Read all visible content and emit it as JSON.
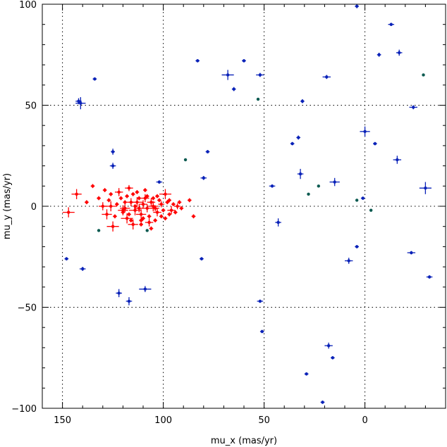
{
  "chart_data": {
    "type": "scatter",
    "title": "",
    "xlabel": "mu_x (mas/yr)",
    "ylabel": "mu_y (mas/yr)",
    "xlim": [
      160,
      -40
    ],
    "ylim": [
      -100,
      100
    ],
    "x_ticks": [
      150,
      100,
      50,
      0
    ],
    "y_ticks": [
      -100,
      -50,
      0,
      50,
      100
    ],
    "x_tick_labels": [
      "150",
      "100",
      "50",
      "0"
    ],
    "y_tick_labels": [
      "−100",
      "−50",
      "0",
      "50",
      "100"
    ],
    "grid": true,
    "legend": "none",
    "series": [
      {
        "color": "#0a22b8",
        "values": [
          {
            "x": 4,
            "y": 99,
            "ex": 1,
            "ey": 1
          },
          {
            "x": -13,
            "y": 90,
            "ex": 1.5,
            "ey": 0.8
          },
          {
            "x": -7,
            "y": 75,
            "ex": 1,
            "ey": 1
          },
          {
            "x": -17,
            "y": 76,
            "ex": 1.5,
            "ey": 1.5
          },
          {
            "x": 83,
            "y": 72,
            "ex": 1,
            "ey": 0.8
          },
          {
            "x": 60,
            "y": 72,
            "ex": 1,
            "ey": 0.8
          },
          {
            "x": 68,
            "y": 65,
            "ex": 3,
            "ey": 2.5
          },
          {
            "x": 52,
            "y": 65,
            "ex": 2,
            "ey": 1
          },
          {
            "x": 19,
            "y": 64,
            "ex": 2,
            "ey": 1
          },
          {
            "x": 65,
            "y": 58,
            "ex": 1,
            "ey": 1
          },
          {
            "x": 134,
            "y": 63,
            "ex": 1,
            "ey": 0.8
          },
          {
            "x": 142,
            "y": 52,
            "ex": 1.5,
            "ey": 1.5
          },
          {
            "x": 141,
            "y": 51,
            "ex": 2.5,
            "ey": 3
          },
          {
            "x": 31,
            "y": 52,
            "ex": 1,
            "ey": 1
          },
          {
            "x": -24,
            "y": 49,
            "ex": 2,
            "ey": 1
          },
          {
            "x": 0,
            "y": 37,
            "ex": 2.5,
            "ey": 2.5
          },
          {
            "x": 33,
            "y": 34,
            "ex": 1,
            "ey": 1
          },
          {
            "x": 36,
            "y": 31,
            "ex": 1,
            "ey": 0.8
          },
          {
            "x": -5,
            "y": 31,
            "ex": 1,
            "ey": 0.8
          },
          {
            "x": 125,
            "y": 27,
            "ex": 1,
            "ey": 1.5
          },
          {
            "x": 78,
            "y": 27,
            "ex": 1,
            "ey": 0.8
          },
          {
            "x": -16,
            "y": 23,
            "ex": 2,
            "ey": 2
          },
          {
            "x": 125,
            "y": 20,
            "ex": 1.5,
            "ey": 1.5
          },
          {
            "x": 32,
            "y": 16,
            "ex": 1.5,
            "ey": 2.5
          },
          {
            "x": 80,
            "y": 14,
            "ex": 1.5,
            "ey": 1
          },
          {
            "x": 102,
            "y": 12,
            "ex": 1.5,
            "ey": 0.8
          },
          {
            "x": 15,
            "y": 12,
            "ex": 2.5,
            "ey": 2
          },
          {
            "x": 46,
            "y": 10,
            "ex": 1.5,
            "ey": 0.8
          },
          {
            "x": -30,
            "y": 9,
            "ex": 3,
            "ey": 3
          },
          {
            "x": 1,
            "y": 4,
            "ex": 1,
            "ey": 0.8
          },
          {
            "x": 43,
            "y": -8,
            "ex": 1.5,
            "ey": 2
          },
          {
            "x": 148,
            "y": -26,
            "ex": 1,
            "ey": 0.8
          },
          {
            "x": 140,
            "y": -31,
            "ex": 1.5,
            "ey": 1
          },
          {
            "x": 81,
            "y": -26,
            "ex": 1,
            "ey": 0.8
          },
          {
            "x": 4,
            "y": -20,
            "ex": 1,
            "ey": 0.8
          },
          {
            "x": 8,
            "y": -27,
            "ex": 2,
            "ey": 1.5
          },
          {
            "x": -23,
            "y": -23,
            "ex": 2,
            "ey": 0.8
          },
          {
            "x": -32,
            "y": -35,
            "ex": 1.5,
            "ey": 0.8
          },
          {
            "x": 122,
            "y": -43,
            "ex": 1.5,
            "ey": 2
          },
          {
            "x": 109,
            "y": -41,
            "ex": 3,
            "ey": 1.5
          },
          {
            "x": 117,
            "y": -47,
            "ex": 1.5,
            "ey": 2
          },
          {
            "x": 52,
            "y": -47,
            "ex": 1.5,
            "ey": 0.8
          },
          {
            "x": 51,
            "y": -62,
            "ex": 1,
            "ey": 0.8
          },
          {
            "x": 18,
            "y": -69,
            "ex": 2,
            "ey": 1.5
          },
          {
            "x": 16,
            "y": -75,
            "ex": 1,
            "ey": 0.8
          },
          {
            "x": 29,
            "y": -83,
            "ex": 1,
            "ey": 0.8
          },
          {
            "x": 21,
            "y": -97,
            "ex": 1,
            "ey": 0.8
          }
        ]
      },
      {
        "color": "#0a5a50",
        "values": [
          {
            "x": -29,
            "y": 65,
            "ex": 0,
            "ey": 0
          },
          {
            "x": 53,
            "y": 53,
            "ex": 0,
            "ey": 0
          },
          {
            "x": 89,
            "y": 23,
            "ex": 0,
            "ey": 0
          },
          {
            "x": 28,
            "y": 6,
            "ex": 0,
            "ey": 0
          },
          {
            "x": 23,
            "y": 10,
            "ex": 0,
            "ey": 0
          },
          {
            "x": 4,
            "y": 3,
            "ex": 0,
            "ey": 0
          },
          {
            "x": -3,
            "y": -2,
            "ex": 0,
            "ey": 0
          },
          {
            "x": 132,
            "y": -12,
            "ex": 0,
            "ey": 0
          },
          {
            "x": 108,
            "y": -12,
            "ex": 0,
            "ey": 0
          }
        ]
      },
      {
        "color": "#ff0000",
        "values": [
          {
            "x": 147,
            "y": -3,
            "ex": 3,
            "ey": 2.5
          },
          {
            "x": 143,
            "y": 6,
            "ex": 2.5,
            "ey": 2.5
          },
          {
            "x": 135,
            "y": 10,
            "ex": 1,
            "ey": 1
          },
          {
            "x": 138,
            "y": 2,
            "ex": 1,
            "ey": 1
          },
          {
            "x": 130,
            "y": 0,
            "ex": 2,
            "ey": 2
          },
          {
            "x": 128,
            "y": -4,
            "ex": 2.5,
            "ey": 2.5
          },
          {
            "x": 126,
            "y": 0,
            "ex": 3,
            "ey": 2.5
          },
          {
            "x": 125,
            "y": -10,
            "ex": 3,
            "ey": 2.5
          },
          {
            "x": 122,
            "y": 7,
            "ex": 2,
            "ey": 2
          },
          {
            "x": 120,
            "y": -2,
            "ex": 2.5,
            "ey": 2.5
          },
          {
            "x": 118,
            "y": -6,
            "ex": 3,
            "ey": 2.5
          },
          {
            "x": 115,
            "y": -9,
            "ex": 2.5,
            "ey": 2.5
          },
          {
            "x": 113,
            "y": 2,
            "ex": 3,
            "ey": 2.5
          },
          {
            "x": 111,
            "y": -4,
            "ex": 2.5,
            "ey": 2.5
          },
          {
            "x": 109,
            "y": 4,
            "ex": 2,
            "ey": 2
          },
          {
            "x": 107,
            "y": -8,
            "ex": 2,
            "ey": 2
          },
          {
            "x": 105,
            "y": 0,
            "ex": 2.5,
            "ey": 2.5
          },
          {
            "x": 103,
            "y": -3,
            "ex": 2,
            "ey": 2
          },
          {
            "x": 99,
            "y": 6,
            "ex": 3,
            "ey": 2.5
          },
          {
            "x": 96,
            "y": -2,
            "ex": 2,
            "ey": 2
          },
          {
            "x": 93,
            "y": 0,
            "ex": 1.5,
            "ey": 1.5
          },
          {
            "x": 117,
            "y": 9,
            "ex": 2,
            "ey": 1.5
          },
          {
            "x": 116,
            "y": 2,
            "ex": 2,
            "ey": 2
          },
          {
            "x": 119,
            "y": -1,
            "ex": 2.5,
            "ey": 2
          },
          {
            "x": 114,
            "y": -2,
            "ex": 3,
            "ey": 2.5
          },
          {
            "x": 112,
            "y": -1,
            "ex": 2.5,
            "ey": 2
          },
          {
            "x": 110,
            "y": 1,
            "ex": 2,
            "ey": 2
          },
          {
            "x": 108,
            "y": -1,
            "ex": 2.5,
            "ey": 2
          },
          {
            "x": 106,
            "y": 2,
            "ex": 2,
            "ey": 2
          },
          {
            "x": 104,
            "y": -1,
            "ex": 2,
            "ey": 1.5
          },
          {
            "x": 101,
            "y": 1,
            "ex": 1.5,
            "ey": 1.5
          },
          {
            "x": 132,
            "y": 4,
            "ex": 1,
            "ey": 1
          },
          {
            "x": 129,
            "y": 8,
            "ex": 1,
            "ey": 1
          },
          {
            "x": 127,
            "y": 3,
            "ex": 1,
            "ey": 1
          },
          {
            "x": 124,
            "y": -5,
            "ex": 1,
            "ey": 1
          },
          {
            "x": 121,
            "y": 4,
            "ex": 1,
            "ey": 1
          },
          {
            "x": 118,
            "y": 5,
            "ex": 1,
            "ey": 1
          },
          {
            "x": 116,
            "y": -7,
            "ex": 1,
            "ey": 1
          },
          {
            "x": 113,
            "y": 7,
            "ex": 1,
            "ey": 1
          },
          {
            "x": 111,
            "y": -7,
            "ex": 1,
            "ey": 1
          },
          {
            "x": 109,
            "y": 8,
            "ex": 1,
            "ey": 1
          },
          {
            "x": 107,
            "y": -5,
            "ex": 1,
            "ey": 1
          },
          {
            "x": 105,
            "y": 4,
            "ex": 1,
            "ey": 1
          },
          {
            "x": 104,
            "y": -7,
            "ex": 1,
            "ey": 1
          },
          {
            "x": 102,
            "y": 3,
            "ex": 1,
            "ey": 1
          },
          {
            "x": 100,
            "y": -2,
            "ex": 1,
            "ey": 1
          },
          {
            "x": 98,
            "y": 2,
            "ex": 1,
            "ey": 1
          },
          {
            "x": 97,
            "y": -4,
            "ex": 1,
            "ey": 1
          },
          {
            "x": 95,
            "y": 1,
            "ex": 1,
            "ey": 1
          },
          {
            "x": 94,
            "y": -3,
            "ex": 1,
            "ey": 1
          },
          {
            "x": 92,
            "y": 2,
            "ex": 1,
            "ey": 1
          },
          {
            "x": 91,
            "y": -1,
            "ex": 1,
            "ey": 1
          },
          {
            "x": 87,
            "y": 3,
            "ex": 1,
            "ey": 1
          },
          {
            "x": 85,
            "y": -5,
            "ex": 1,
            "ey": 1
          },
          {
            "x": 106,
            "y": -11,
            "ex": 1,
            "ey": 1
          },
          {
            "x": 110,
            "y": -6,
            "ex": 1,
            "ey": 1
          },
          {
            "x": 114,
            "y": 0,
            "ex": 1,
            "ey": 1
          },
          {
            "x": 112,
            "y": 4,
            "ex": 1,
            "ey": 1
          },
          {
            "x": 120,
            "y": -3,
            "ex": 1,
            "ey": 1
          },
          {
            "x": 123,
            "y": 1,
            "ex": 1,
            "ey": 1
          },
          {
            "x": 115,
            "y": 6,
            "ex": 1,
            "ey": 1
          },
          {
            "x": 108,
            "y": 5,
            "ex": 1,
            "ey": 1
          },
          {
            "x": 103,
            "y": 5,
            "ex": 1,
            "ey": 1
          },
          {
            "x": 101,
            "y": -5,
            "ex": 1,
            "ey": 1
          },
          {
            "x": 99,
            "y": -6,
            "ex": 1,
            "ey": 1
          },
          {
            "x": 97,
            "y": 3,
            "ex": 1,
            "ey": 1
          },
          {
            "x": 111,
            "y": -9,
            "ex": 1,
            "ey": 1
          },
          {
            "x": 117,
            "y": -4,
            "ex": 1,
            "ey": 1
          },
          {
            "x": 119,
            "y": 2,
            "ex": 1,
            "ey": 1
          },
          {
            "x": 126,
            "y": 6,
            "ex": 1,
            "ey": 1
          }
        ]
      }
    ]
  }
}
